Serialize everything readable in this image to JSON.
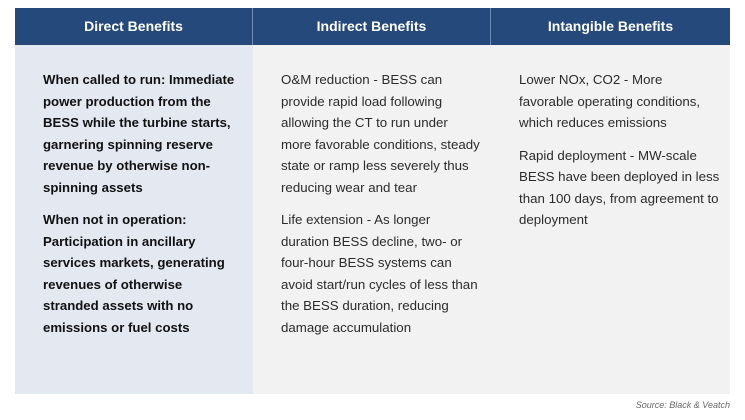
{
  "table": {
    "headers": [
      "Direct Benefits",
      "Indirect Benefits",
      "Intangible Benefits"
    ],
    "columns": {
      "direct": [
        "When called to run: Immediate power production from the BESS while the turbine starts, garnering spinning reserve revenue by otherwise non-spinning assets",
        "When not in operation: Participation in ancillary services markets, generating revenues of otherwise stranded assets with no emissions or fuel costs"
      ],
      "indirect": [
        "O&M reduction - BESS can provide rapid load following allowing the CT to run under more favorable conditions, steady state or ramp less severely thus reducing wear and tear",
        "Life extension - As longer duration BESS decline, two- or four-hour BESS systems can avoid start/run cycles of less than the BESS duration, reducing damage accumulation"
      ],
      "intangible": [
        "Lower NOx, CO2 - More favorable operating conditions, which reduces emissions",
        "Rapid deployment - MW-scale BESS have been deployed in less than 100 days, from agreement to deployment"
      ]
    }
  },
  "source": "Source: Black & Veatch",
  "colors": {
    "header_bg": "#25497a",
    "direct_column_bg": "#e3e8f1",
    "other_columns_bg": "#f2f2f2"
  }
}
